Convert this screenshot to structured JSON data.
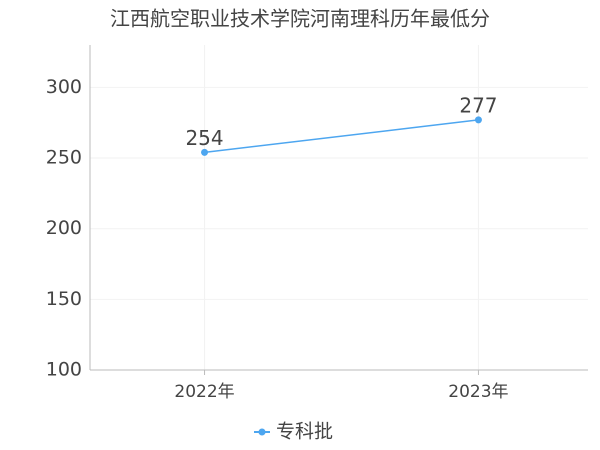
{
  "chart_data": {
    "type": "line",
    "title": "江西航空职业技术学院河南理科历年最低分",
    "categories": [
      "2022年",
      "2023年"
    ],
    "series": [
      {
        "name": "专科批",
        "color": "#4da6f0",
        "values": [
          254,
          277
        ]
      }
    ],
    "ylim": [
      100,
      330
    ],
    "yticks": [
      100,
      150,
      200,
      250,
      300
    ],
    "grid": true
  }
}
